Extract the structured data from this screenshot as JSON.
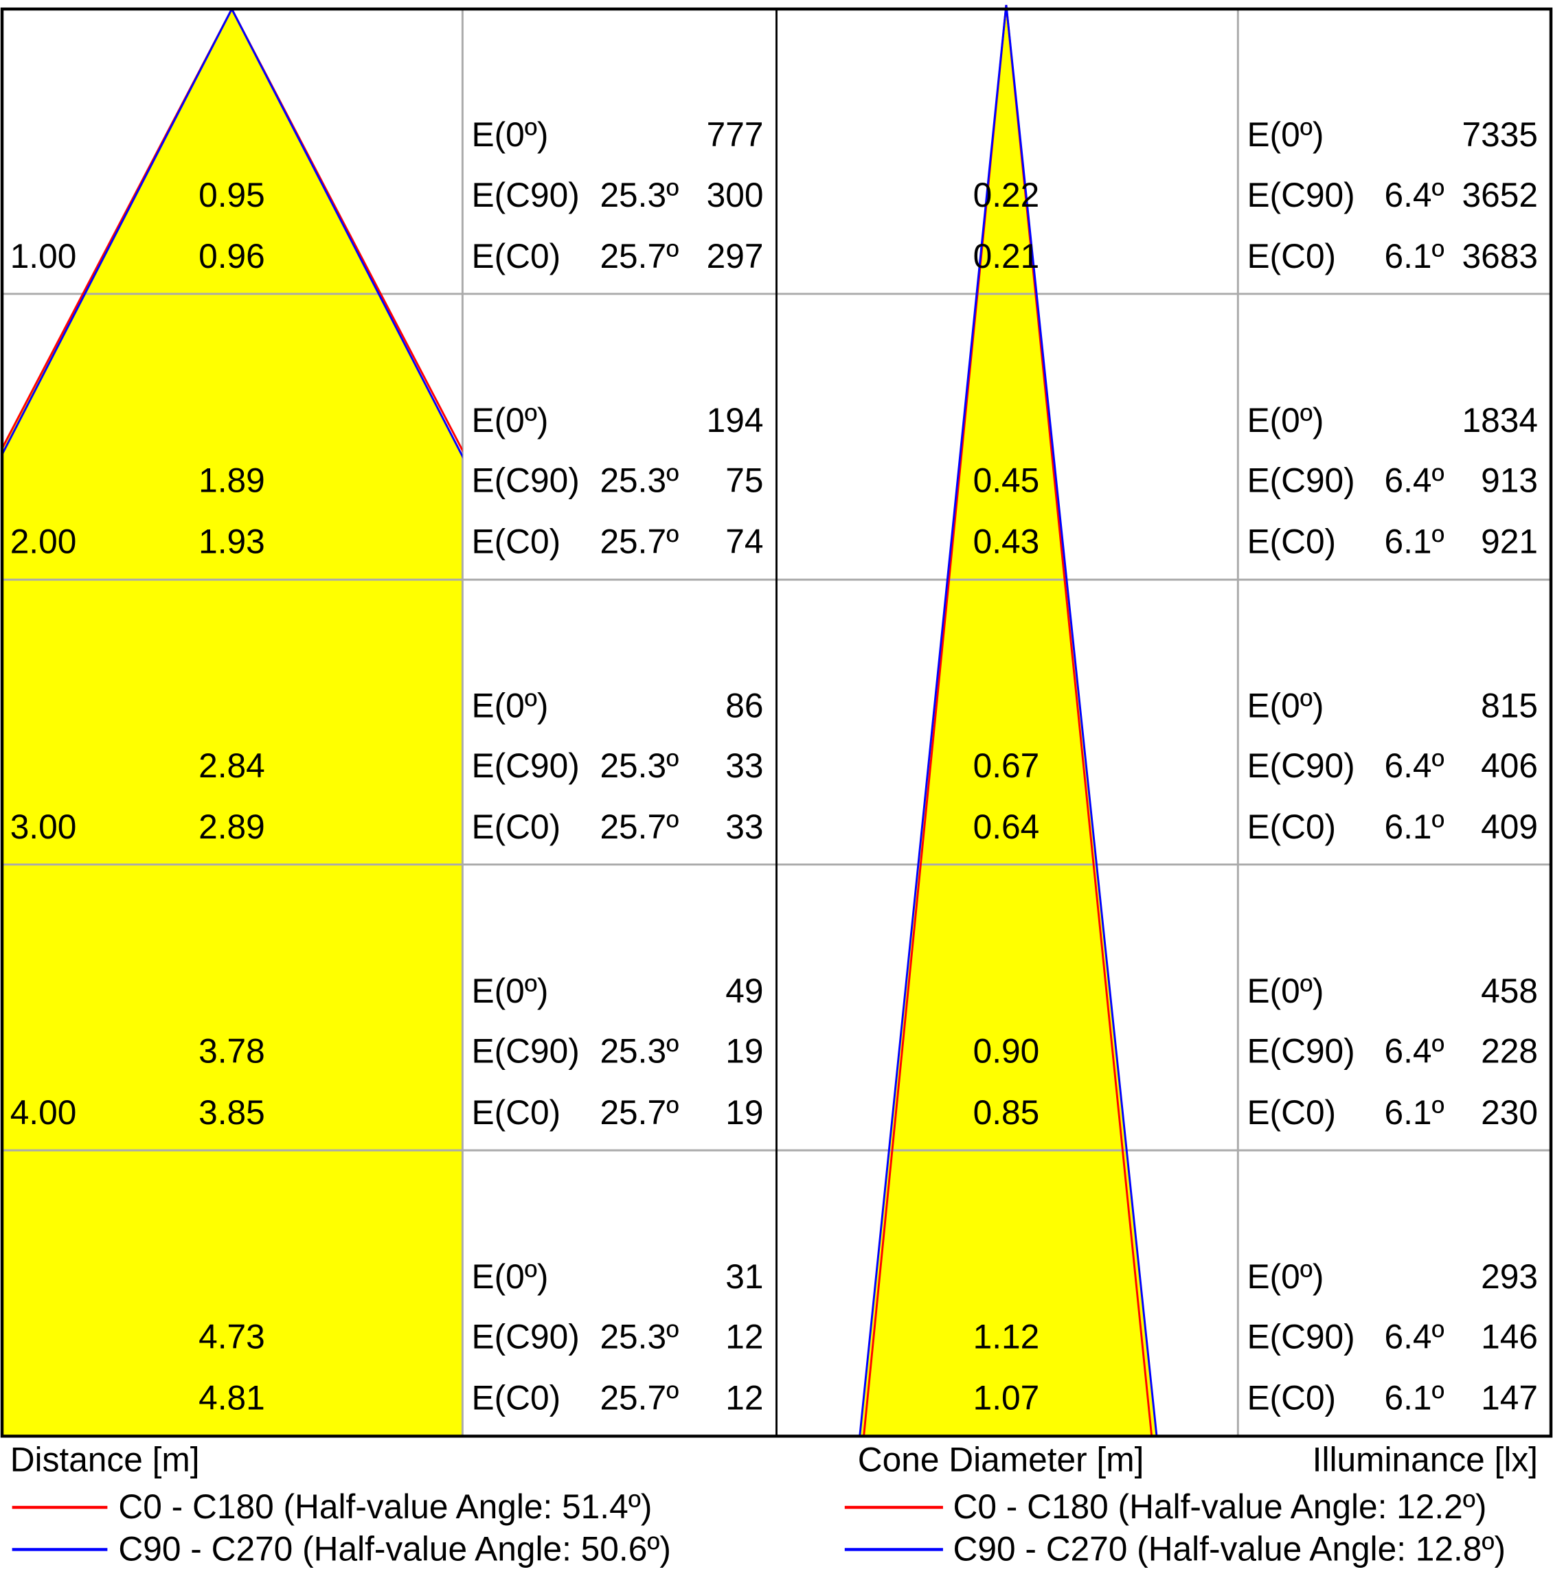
{
  "row_labels": [
    "E(0º)",
    "E(C90)",
    "E(C0)"
  ],
  "panels": [
    {
      "axis_label": "Distance [m]",
      "legend": [
        {
          "name": "C0 - C180 (Half-value Angle: 51.4º)",
          "color": "#ff0000"
        },
        {
          "name": "C90 - C270 (Half-value Angle: 50.6º)",
          "color": "#0000ff"
        }
      ],
      "angle_c90": "25.3º",
      "angle_c0": "25.7º",
      "rows": [
        {
          "distance": "1.00",
          "d_c90": "0.95",
          "d_c0": "0.96",
          "e0": "777",
          "e_c90": "300",
          "e_c0": "297"
        },
        {
          "distance": "2.00",
          "d_c90": "1.89",
          "d_c0": "1.93",
          "e0": "194",
          "e_c90": "75",
          "e_c0": "74"
        },
        {
          "distance": "3.00",
          "d_c90": "2.84",
          "d_c0": "2.89",
          "e0": "86",
          "e_c90": "33",
          "e_c0": "33"
        },
        {
          "distance": "4.00",
          "d_c90": "3.78",
          "d_c0": "3.85",
          "e0": "49",
          "e_c90": "19",
          "e_c0": "19"
        },
        {
          "d_c90": "4.73",
          "d_c0": "4.81",
          "e0": "31",
          "e_c90": "12",
          "e_c0": "12"
        }
      ]
    },
    {
      "axis_label": "Cone Diameter [m]",
      "unit_label": "Illuminance [lx]",
      "legend": [
        {
          "name": "C0 - C180 (Half-value Angle: 12.2º)",
          "color": "#ff0000"
        },
        {
          "name": "C90 - C270 (Half-value Angle: 12.8º)",
          "color": "#0000ff"
        }
      ],
      "angle_c90": "6.4º",
      "angle_c0": "6.1º",
      "rows": [
        {
          "d_c90": "0.22",
          "d_c0": "0.21",
          "e0": "7335",
          "e_c90": "3652",
          "e_c0": "3683"
        },
        {
          "d_c90": "0.45",
          "d_c0": "0.43",
          "e0": "1834",
          "e_c90": "913",
          "e_c0": "921"
        },
        {
          "d_c90": "0.67",
          "d_c0": "0.64",
          "e0": "815",
          "e_c90": "406",
          "e_c0": "409"
        },
        {
          "d_c90": "0.90",
          "d_c0": "0.85",
          "e0": "458",
          "e_c90": "228",
          "e_c0": "230"
        },
        {
          "d_c90": "1.12",
          "d_c0": "1.07",
          "e0": "293",
          "e_c90": "146",
          "e_c0": "147"
        }
      ]
    }
  ]
}
